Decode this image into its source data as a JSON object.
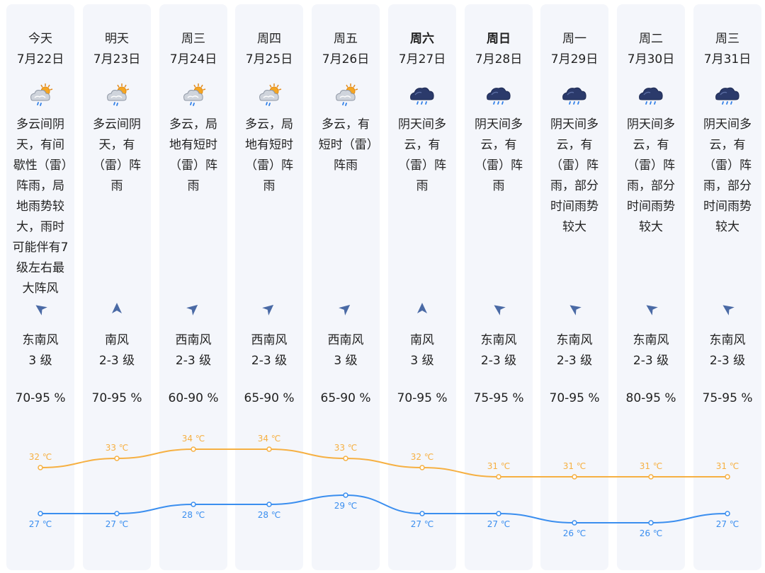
{
  "days": [
    {
      "name": "今天",
      "bold": false,
      "date": "7月22日",
      "icon": "partly-cloudy-rain-icon",
      "desc": "多云间阴天，有间歇性（雷）阵雨，局地雨势较大，雨时可能伴有7级左右最大阵风",
      "wind_dir_icon": "wind-southeast-arrow-icon",
      "wind_name": "东南风",
      "wind_level": "3 级",
      "humidity": "70-95 %",
      "high": "32 ℃",
      "low": "27 ℃"
    },
    {
      "name": "明天",
      "bold": false,
      "date": "7月23日",
      "icon": "partly-cloudy-rain-icon",
      "desc": "多云间阴天，有（雷）阵雨",
      "wind_dir_icon": "wind-south-arrow-icon",
      "wind_name": "南风",
      "wind_level": "2-3 级",
      "humidity": "70-95 %",
      "high": "33 ℃",
      "low": "27 ℃"
    },
    {
      "name": "周三",
      "bold": false,
      "date": "7月24日",
      "icon": "partly-cloudy-rain-icon",
      "desc": "多云，局地有短时（雷）阵雨",
      "wind_dir_icon": "wind-southwest-arrow-icon",
      "wind_name": "西南风",
      "wind_level": "2-3 级",
      "humidity": "60-90 %",
      "high": "34 ℃",
      "low": "28 ℃"
    },
    {
      "name": "周四",
      "bold": false,
      "date": "7月25日",
      "icon": "partly-cloudy-rain-icon",
      "desc": "多云，局地有短时（雷）阵雨",
      "wind_dir_icon": "wind-southwest-arrow-icon",
      "wind_name": "西南风",
      "wind_level": "2-3 级",
      "humidity": "65-90 %",
      "high": "34 ℃",
      "low": "28 ℃"
    },
    {
      "name": "周五",
      "bold": false,
      "date": "7月26日",
      "icon": "partly-cloudy-rain-icon",
      "desc": "多云，有短时（雷）阵雨",
      "wind_dir_icon": "wind-southwest-arrow-icon",
      "wind_name": "西南风",
      "wind_level": "3 级",
      "humidity": "65-90 %",
      "high": "33 ℃",
      "low": "29 ℃"
    },
    {
      "name": "周六",
      "bold": true,
      "date": "7月27日",
      "icon": "cloudy-rain-icon",
      "desc": "阴天间多云，有（雷）阵雨",
      "wind_dir_icon": "wind-south-arrow-icon",
      "wind_name": "南风",
      "wind_level": "3 级",
      "humidity": "70-95 %",
      "high": "32 ℃",
      "low": "27 ℃"
    },
    {
      "name": "周日",
      "bold": true,
      "date": "7月28日",
      "icon": "cloudy-rain-icon",
      "desc": "阴天间多云，有（雷）阵雨",
      "wind_dir_icon": "wind-southeast-arrow-icon",
      "wind_name": "东南风",
      "wind_level": "2-3 级",
      "humidity": "75-95 %",
      "high": "31 ℃",
      "low": "27 ℃"
    },
    {
      "name": "周一",
      "bold": false,
      "date": "7月29日",
      "icon": "cloudy-rain-icon",
      "desc": "阴天间多云，有（雷）阵雨，部分时间雨势较大",
      "wind_dir_icon": "wind-southeast-arrow-icon",
      "wind_name": "东南风",
      "wind_level": "2-3 级",
      "humidity": "70-95 %",
      "high": "31 ℃",
      "low": "26 ℃"
    },
    {
      "name": "周二",
      "bold": false,
      "date": "7月30日",
      "icon": "cloudy-rain-icon",
      "desc": "阴天间多云，有（雷）阵雨，部分时间雨势较大",
      "wind_dir_icon": "wind-southeast-arrow-icon",
      "wind_name": "东南风",
      "wind_level": "2-3 级",
      "humidity": "80-95 %",
      "high": "31 ℃",
      "low": "26 ℃"
    },
    {
      "name": "周三",
      "bold": false,
      "date": "7月31日",
      "icon": "cloudy-rain-icon",
      "desc": "阴天间多云，有（雷）阵雨，部分时间雨势较大",
      "wind_dir_icon": "wind-southeast-arrow-icon",
      "wind_name": "东南风",
      "wind_level": "2-3 级",
      "humidity": "75-95 %",
      "high": "31 ℃",
      "low": "27 ℃"
    }
  ],
  "colors": {
    "high_line": "#f6b042",
    "low_line": "#3a8eef",
    "column_bg": "#f4f6fb",
    "cloud_dark": "#2b3a6b",
    "arrow": "#4a6aa5"
  },
  "chart_data": {
    "type": "line",
    "categories": [
      "7月22日",
      "7月23日",
      "7月24日",
      "7月25日",
      "7月26日",
      "7月27日",
      "7月28日",
      "7月29日",
      "7月30日",
      "7月31日"
    ],
    "series": [
      {
        "values": [
          32,
          33,
          34,
          34,
          33,
          32,
          31,
          31,
          31,
          31
        ]
      },
      {
        "values": [
          27,
          27,
          28,
          28,
          29,
          27,
          27,
          26,
          26,
          27
        ]
      }
    ],
    "ylim": [
      25,
      35
    ],
    "grid": false,
    "unit": "℃"
  }
}
